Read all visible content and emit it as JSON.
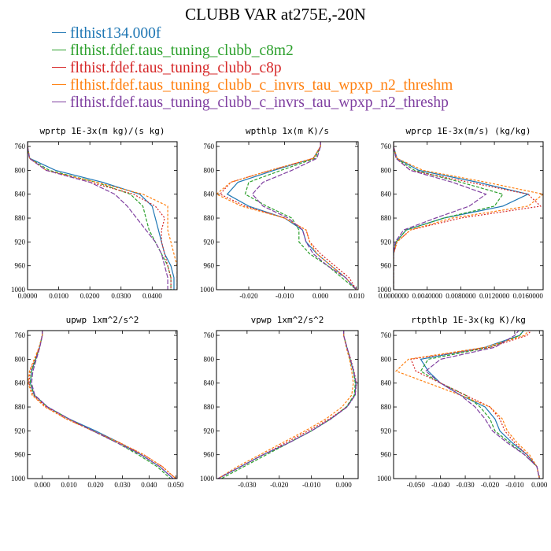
{
  "title": "CLUBB VAR at275E,-20N",
  "legend": [
    {
      "label": "flthist134.000f",
      "color": "#1f77b4"
    },
    {
      "label": "flthist.fdef.taus_tuning_clubb_c8m2",
      "color": "#2ca02c"
    },
    {
      "label": "flthist.fdef.taus_tuning_clubb_c8p",
      "color": "#d62728"
    },
    {
      "label": "flthist.fdef.taus_tuning_clubb_c_invrs_tau_wpxp_n2_threshm",
      "color": "#ff7f0e"
    },
    {
      "label": "flthist.fdef.taus_tuning_clubb_c_invrs_tau_wpxp_n2_threshp",
      "color": "#7f3fa0"
    }
  ],
  "chart_data": [
    {
      "type": "line",
      "title": "wprtp  1E-3x(m kg)/(s kg)",
      "y": [
        750,
        760,
        780,
        800,
        820,
        840,
        860,
        880,
        900,
        920,
        940,
        960,
        980,
        1000
      ],
      "ylim": [
        1000,
        752
      ],
      "yticks": [
        760,
        800,
        840,
        880,
        920,
        960,
        1000
      ],
      "xlim": [
        0,
        0.048
      ],
      "xticks": [
        0,
        0.01,
        0.02,
        0.03,
        0.04
      ],
      "xtick_labels": [
        "0.0000",
        "0.0100",
        "0.0200",
        "0.0300",
        "0.0400"
      ],
      "series": [
        {
          "values": [
            0.0,
            0.0,
            0.0007,
            0.009,
            0.024,
            0.036,
            0.04,
            0.041,
            0.042,
            0.043,
            0.044,
            0.046,
            0.047,
            0.047
          ]
        },
        {
          "values": [
            0.0,
            0.0,
            0.0006,
            0.007,
            0.022,
            0.033,
            0.037,
            0.038,
            0.039,
            0.041,
            0.043,
            0.045,
            0.046,
            0.046
          ]
        },
        {
          "values": [
            0.0,
            0.0,
            0.0006,
            0.006,
            0.02,
            0.034,
            0.041,
            0.044,
            0.043,
            0.043,
            0.044,
            0.045,
            0.046,
            0.046
          ]
        },
        {
          "values": [
            0.0,
            0.0,
            0.0007,
            0.006,
            0.022,
            0.037,
            0.045,
            0.045,
            0.045,
            0.046,
            0.047,
            0.048,
            0.048,
            0.048
          ]
        },
        {
          "values": [
            0.0,
            0.0,
            0.0006,
            0.006,
            0.02,
            0.028,
            0.032,
            0.035,
            0.038,
            0.041,
            0.043,
            0.044,
            0.045,
            0.045
          ]
        }
      ]
    },
    {
      "type": "line",
      "title": "wpthlp  1x(m K)/s",
      "y": [
        750,
        760,
        780,
        800,
        820,
        840,
        860,
        880,
        900,
        920,
        940,
        960,
        980,
        1000
      ],
      "ylim": [
        1000,
        752
      ],
      "yticks": [
        760,
        800,
        840,
        880,
        920,
        960,
        1000
      ],
      "xlim": [
        -0.029,
        0.0105
      ],
      "xticks": [
        -0.02,
        -0.01,
        0.0,
        0.01
      ],
      "xtick_labels": [
        "-0.020",
        "-0.010",
        "0.000",
        "0.010"
      ],
      "series": [
        {
          "values": [
            0.0,
            0.0,
            -0.002,
            -0.013,
            -0.023,
            -0.026,
            -0.02,
            -0.01,
            -0.005,
            -0.004,
            -0.001,
            0.003,
            0.007,
            0.01
          ]
        },
        {
          "values": [
            0.0,
            0.0,
            -0.0015,
            -0.011,
            -0.02,
            -0.021,
            -0.015,
            -0.008,
            -0.006,
            -0.006,
            -0.003,
            0.002,
            0.006,
            0.01
          ]
        },
        {
          "values": [
            0.0,
            0.0,
            -0.002,
            -0.014,
            -0.025,
            -0.028,
            -0.021,
            -0.01,
            -0.004,
            -0.003,
            0.0,
            0.004,
            0.008,
            0.01
          ]
        },
        {
          "values": [
            0.0,
            0.0,
            -0.002,
            -0.014,
            -0.025,
            -0.029,
            -0.022,
            -0.01,
            -0.004,
            -0.003,
            -0.001,
            0.003,
            0.007,
            0.01
          ]
        },
        {
          "values": [
            0.0,
            0.0,
            -0.001,
            -0.008,
            -0.016,
            -0.019,
            -0.016,
            -0.009,
            -0.005,
            -0.004,
            -0.002,
            0.002,
            0.007,
            0.01
          ]
        }
      ]
    },
    {
      "type": "line",
      "title": "wprcp  1E-3x(m/s) (kg/kg)",
      "y": [
        750,
        760,
        780,
        800,
        820,
        840,
        860,
        880,
        900,
        920,
        940,
        960,
        980,
        1000
      ],
      "ylim": [
        1000,
        752
      ],
      "yticks": [
        760,
        800,
        840,
        880,
        920,
        960,
        1000
      ],
      "xlim": [
        0,
        0.0178
      ],
      "xticks": [
        0,
        0.004,
        0.008,
        0.012,
        0.016
      ],
      "xtick_labels": [
        "0.0000000",
        "0.0040000",
        "0.0080000",
        "0.0120000",
        "0.0160000"
      ],
      "series": [
        {
          "values": [
            0.0,
            0.0,
            0.0004,
            0.003,
            0.01,
            0.016,
            0.013,
            0.006,
            0.0015,
            0.0003,
            0.0,
            0.0,
            0.0,
            0.0
          ]
        },
        {
          "values": [
            0.0,
            0.0,
            0.0003,
            0.0025,
            0.008,
            0.013,
            0.012,
            0.006,
            0.0015,
            0.0003,
            0.0,
            0.0,
            0.0,
            0.0
          ]
        },
        {
          "values": [
            0.0,
            0.0,
            0.0003,
            0.002,
            0.009,
            0.016,
            0.0175,
            0.008,
            0.002,
            0.0004,
            0.0,
            0.0,
            0.0,
            0.0
          ]
        },
        {
          "values": [
            0.0,
            0.0,
            0.0004,
            0.0035,
            0.011,
            0.0178,
            0.016,
            0.007,
            0.002,
            0.0004,
            0.0,
            0.0,
            0.0,
            0.0
          ]
        },
        {
          "values": [
            0.0,
            0.0,
            0.0003,
            0.002,
            0.007,
            0.011,
            0.009,
            0.005,
            0.0012,
            0.0002,
            0.0,
            0.0,
            0.0,
            0.0
          ]
        }
      ]
    },
    {
      "type": "line",
      "title": "upwp  1xm^2/s^2",
      "y": [
        750,
        760,
        780,
        800,
        820,
        840,
        860,
        880,
        900,
        920,
        940,
        960,
        980,
        1000
      ],
      "ylim": [
        1000,
        752
      ],
      "yticks": [
        760,
        800,
        840,
        880,
        920,
        960,
        1000
      ],
      "xlim": [
        -0.0055,
        0.0505
      ],
      "xticks": [
        0.0,
        0.01,
        0.02,
        0.03,
        0.04,
        0.05
      ],
      "xtick_labels": [
        "0.000",
        "0.010",
        "0.020",
        "0.030",
        "0.040",
        "0.050"
      ],
      "series": [
        {
          "values": [
            0.0,
            0.0,
            -0.001,
            -0.0025,
            -0.004,
            -0.0045,
            -0.003,
            0.002,
            0.01,
            0.02,
            0.029,
            0.037,
            0.044,
            0.049
          ]
        },
        {
          "values": [
            0.0,
            0.0,
            -0.001,
            -0.0025,
            -0.004,
            -0.0045,
            -0.003,
            0.002,
            0.01,
            0.019,
            0.028,
            0.036,
            0.043,
            0.048
          ]
        },
        {
          "values": [
            0.0,
            0.0,
            -0.001,
            -0.0028,
            -0.0045,
            -0.005,
            -0.0035,
            0.0015,
            0.009,
            0.019,
            0.029,
            0.038,
            0.045,
            0.05
          ]
        },
        {
          "values": [
            0.0,
            0.0,
            -0.0012,
            -0.003,
            -0.0048,
            -0.0053,
            -0.0038,
            0.001,
            0.009,
            0.019,
            0.029,
            0.038,
            0.045,
            0.05
          ]
        },
        {
          "values": [
            0.0,
            0.0,
            -0.0009,
            -0.0022,
            -0.0035,
            -0.004,
            -0.0028,
            0.002,
            0.01,
            0.019,
            0.028,
            0.037,
            0.044,
            0.049
          ]
        }
      ]
    },
    {
      "type": "line",
      "title": "vpwp  1xm^2/s^2",
      "y": [
        750,
        760,
        780,
        800,
        820,
        840,
        860,
        880,
        900,
        920,
        940,
        960,
        980,
        1000
      ],
      "ylim": [
        1000,
        752
      ],
      "yticks": [
        760,
        800,
        840,
        880,
        920,
        960,
        1000
      ],
      "xlim": [
        -0.0395,
        0.0045
      ],
      "xticks": [
        -0.03,
        -0.02,
        -0.01,
        0.0
      ],
      "xtick_labels": [
        "-0.030",
        "-0.020",
        "-0.010",
        "0.000"
      ],
      "series": [
        {
          "values": [
            0.0,
            0.0,
            0.001,
            0.002,
            0.003,
            0.0038,
            0.0035,
            0.001,
            -0.004,
            -0.01,
            -0.017,
            -0.025,
            -0.032,
            -0.039
          ]
        },
        {
          "values": [
            0.0,
            0.0,
            0.001,
            0.002,
            0.003,
            0.0036,
            0.0033,
            0.0008,
            -0.004,
            -0.01,
            -0.017,
            -0.024,
            -0.031,
            -0.038
          ]
        },
        {
          "values": [
            0.0,
            0.0,
            0.001,
            0.0022,
            0.0032,
            0.004,
            0.0036,
            0.001,
            -0.0045,
            -0.011,
            -0.018,
            -0.025,
            -0.032,
            -0.039
          ]
        },
        {
          "values": [
            0.0,
            0.0,
            0.0008,
            0.0018,
            0.0025,
            0.003,
            0.0025,
            -0.0005,
            -0.0055,
            -0.012,
            -0.019,
            -0.026,
            -0.033,
            -0.039
          ]
        },
        {
          "values": [
            0.0,
            0.0,
            0.001,
            0.0021,
            0.0031,
            0.0039,
            0.0036,
            0.0011,
            -0.004,
            -0.01,
            -0.017,
            -0.025,
            -0.032,
            -0.039
          ]
        }
      ]
    },
    {
      "type": "line",
      "title": "rtpthlp  1E-3x(kg K)/kg",
      "y": [
        750,
        760,
        780,
        800,
        820,
        840,
        860,
        880,
        900,
        920,
        940,
        960,
        980,
        1000
      ],
      "ylim": [
        1000,
        752
      ],
      "yticks": [
        760,
        800,
        840,
        880,
        920,
        960,
        1000
      ],
      "xlim": [
        -0.059,
        0.0015
      ],
      "xticks": [
        -0.05,
        -0.04,
        -0.03,
        -0.02,
        -0.01,
        0.0
      ],
      "xtick_labels": [
        "-0.050",
        "-0.040",
        "-0.030",
        "-0.020",
        "-0.010",
        "0.000"
      ],
      "series": [
        {
          "values": [
            -0.006,
            -0.008,
            -0.022,
            -0.048,
            -0.045,
            -0.04,
            -0.032,
            -0.022,
            -0.018,
            -0.016,
            -0.011,
            -0.005,
            -0.001,
            0.0
          ]
        },
        {
          "values": [
            -0.006,
            -0.008,
            -0.02,
            -0.045,
            -0.048,
            -0.04,
            -0.03,
            -0.024,
            -0.02,
            -0.018,
            -0.012,
            -0.006,
            -0.001,
            0.0
          ]
        },
        {
          "values": [
            -0.003,
            -0.005,
            -0.02,
            -0.052,
            -0.05,
            -0.04,
            -0.03,
            -0.02,
            -0.016,
            -0.014,
            -0.01,
            -0.005,
            -0.001,
            0.0
          ]
        },
        {
          "values": [
            -0.004,
            -0.006,
            -0.022,
            -0.053,
            -0.058,
            -0.045,
            -0.032,
            -0.02,
            -0.015,
            -0.013,
            -0.009,
            -0.004,
            -0.001,
            0.0
          ]
        },
        {
          "values": [
            -0.008,
            -0.01,
            -0.018,
            -0.04,
            -0.046,
            -0.04,
            -0.032,
            -0.026,
            -0.022,
            -0.019,
            -0.013,
            -0.006,
            -0.001,
            0.0
          ]
        }
      ]
    }
  ]
}
